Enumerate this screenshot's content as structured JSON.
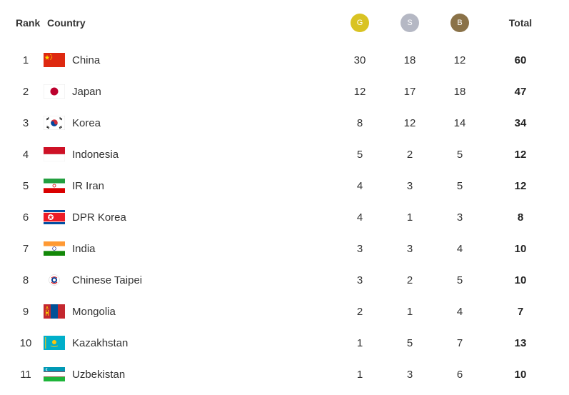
{
  "header": {
    "rank": "Rank",
    "country": "Country",
    "gold": "G",
    "silver": "S",
    "bronze": "B",
    "total": "Total"
  },
  "colors": {
    "gold": "#d9c323",
    "silver": "#b5b8c4",
    "bronze": "#8a7248"
  },
  "rows": [
    {
      "rank": "1",
      "country": "China",
      "flag": "china-flag-icon",
      "gold": "30",
      "silver": "18",
      "bronze": "12",
      "total": "60"
    },
    {
      "rank": "2",
      "country": "Japan",
      "flag": "japan-flag-icon",
      "gold": "12",
      "silver": "17",
      "bronze": "18",
      "total": "47"
    },
    {
      "rank": "3",
      "country": "Korea",
      "flag": "korea-flag-icon",
      "gold": "8",
      "silver": "12",
      "bronze": "14",
      "total": "34"
    },
    {
      "rank": "4",
      "country": "Indonesia",
      "flag": "indonesia-flag-icon",
      "gold": "5",
      "silver": "2",
      "bronze": "5",
      "total": "12"
    },
    {
      "rank": "5",
      "country": "IR Iran",
      "flag": "iran-flag-icon",
      "gold": "4",
      "silver": "3",
      "bronze": "5",
      "total": "12"
    },
    {
      "rank": "6",
      "country": "DPR Korea",
      "flag": "dpr-korea-flag-icon",
      "gold": "4",
      "silver": "1",
      "bronze": "3",
      "total": "8"
    },
    {
      "rank": "7",
      "country": "India",
      "flag": "india-flag-icon",
      "gold": "3",
      "silver": "3",
      "bronze": "4",
      "total": "10"
    },
    {
      "rank": "8",
      "country": "Chinese Taipei",
      "flag": "chinese-taipei-flag-icon",
      "gold": "3",
      "silver": "2",
      "bronze": "5",
      "total": "10"
    },
    {
      "rank": "9",
      "country": "Mongolia",
      "flag": "mongolia-flag-icon",
      "gold": "2",
      "silver": "1",
      "bronze": "4",
      "total": "7"
    },
    {
      "rank": "10",
      "country": "Kazakhstan",
      "flag": "kazakhstan-flag-icon",
      "gold": "1",
      "silver": "5",
      "bronze": "7",
      "total": "13"
    },
    {
      "rank": "11",
      "country": "Uzbekistan",
      "flag": "uzbekistan-flag-icon",
      "gold": "1",
      "silver": "3",
      "bronze": "6",
      "total": "10"
    }
  ]
}
